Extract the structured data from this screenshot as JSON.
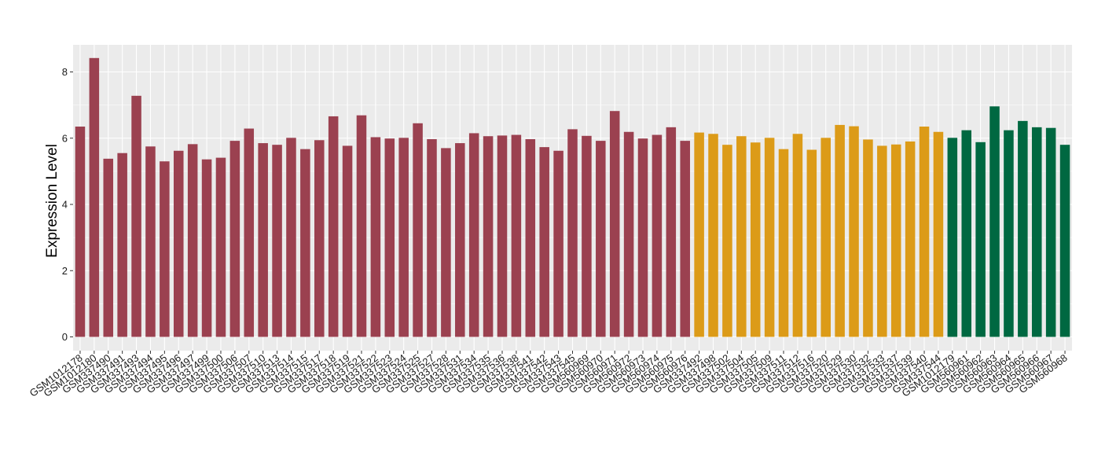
{
  "chart_data": {
    "type": "bar",
    "title": "",
    "xlabel": "",
    "ylabel": "Expression Level",
    "ylim": [
      0,
      8.8
    ],
    "yticks": [
      0,
      2,
      4,
      6,
      8
    ],
    "grid": true,
    "legend": "none",
    "background": "#ebebeb",
    "categories": [
      "GSM1012178",
      "GSM1012180",
      "GSM337490",
      "GSM337491",
      "GSM337493",
      "GSM337494",
      "GSM337495",
      "GSM337496",
      "GSM337497",
      "GSM337499",
      "GSM337500",
      "GSM337506",
      "GSM337507",
      "GSM337510",
      "GSM337513",
      "GSM337514",
      "GSM337515",
      "GSM337517",
      "GSM337518",
      "GSM337519",
      "GSM337521",
      "GSM337522",
      "GSM337523",
      "GSM337524",
      "GSM337525",
      "GSM337527",
      "GSM337528",
      "GSM337531",
      "GSM337534",
      "GSM337535",
      "GSM337536",
      "GSM337538",
      "GSM337541",
      "GSM337542",
      "GSM337543",
      "GSM337545",
      "GSM560969",
      "GSM560970",
      "GSM560971",
      "GSM560972",
      "GSM560973",
      "GSM560974",
      "GSM560975",
      "GSM560976",
      "GSM337492",
      "GSM337498",
      "GSM337502",
      "GSM337504",
      "GSM337505",
      "GSM337509",
      "GSM337511",
      "GSM337512",
      "GSM337516",
      "GSM337520",
      "GSM337529",
      "GSM337530",
      "GSM337532",
      "GSM337533",
      "GSM337537",
      "GSM337539",
      "GSM337540",
      "GSM337544",
      "GSM1012179",
      "GSM560961",
      "GSM560962",
      "GSM560963",
      "GSM560964",
      "GSM560965",
      "GSM560966",
      "GSM560967",
      "GSM560968"
    ],
    "values": [
      6.35,
      8.42,
      5.38,
      5.55,
      7.28,
      5.75,
      5.3,
      5.62,
      5.82,
      5.36,
      5.41,
      5.92,
      6.29,
      5.85,
      5.8,
      6.01,
      5.67,
      5.94,
      6.66,
      5.77,
      6.69,
      6.03,
      5.99,
      6.01,
      6.45,
      5.97,
      5.7,
      5.85,
      6.15,
      6.06,
      6.08,
      6.1,
      5.97,
      5.73,
      5.62,
      6.27,
      6.07,
      5.92,
      6.82,
      6.19,
      5.99,
      6.1,
      6.33,
      5.92,
      6.17,
      6.13,
      5.8,
      6.06,
      5.87,
      6.01,
      5.67,
      6.13,
      5.65,
      6.01,
      6.4,
      6.36,
      5.96,
      5.77,
      5.81,
      5.9,
      6.35,
      6.19,
      6.01,
      6.24,
      5.88,
      6.96,
      6.24,
      6.52,
      6.33,
      6.31,
      5.8
    ],
    "groups": [
      {
        "count": 44,
        "color": "#9b4150"
      },
      {
        "count": 18,
        "color": "#dc9b18"
      },
      {
        "count": 9,
        "color": "#006841"
      }
    ]
  }
}
